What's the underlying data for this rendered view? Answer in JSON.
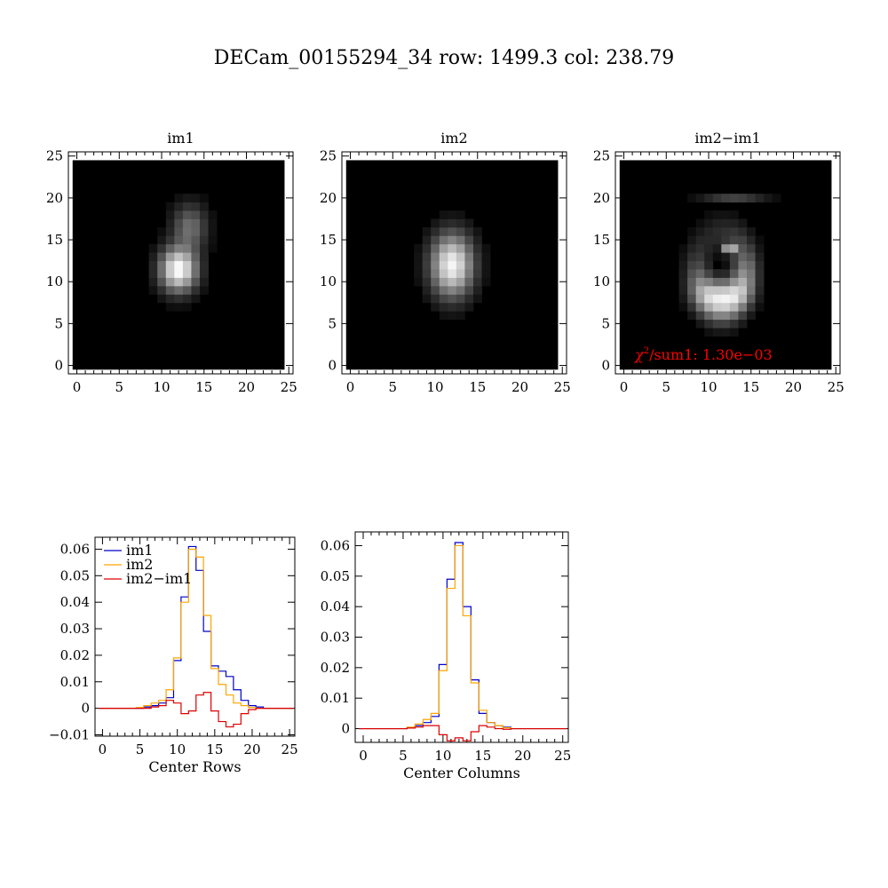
{
  "figure": {
    "title": "DECam_00155294_34 row: 1499.3 col: 238.79"
  },
  "chart_data": [
    {
      "type": "heatmap",
      "title": "im1",
      "xlim": [
        -1,
        25.5
      ],
      "ylim": [
        -1,
        25.5
      ],
      "xticks": [
        0,
        5,
        10,
        15,
        20,
        25
      ],
      "yticks": [
        0,
        5,
        10,
        15,
        20,
        25
      ],
      "tick_labels": [
        "0",
        "5",
        "10",
        "15",
        "20",
        "25"
      ],
      "grid_size": 25,
      "blobs": [
        {
          "cx": 12,
          "cy": 11.5,
          "sx": 1.4,
          "sy": 1.7,
          "amp": 1.0
        },
        {
          "cx": 13.3,
          "cy": 16.5,
          "sx": 1.3,
          "sy": 1.8,
          "amp": 0.35
        }
      ]
    },
    {
      "type": "heatmap",
      "title": "im2",
      "xlim": [
        -1,
        25.5
      ],
      "ylim": [
        -1,
        25.5
      ],
      "xticks": [
        0,
        5,
        10,
        15,
        20,
        25
      ],
      "yticks": [
        0,
        5,
        10,
        15,
        20,
        25
      ],
      "tick_labels": [
        "0",
        "5",
        "10",
        "15",
        "20",
        "25"
      ],
      "grid_size": 25,
      "blobs": [
        {
          "cx": 12,
          "cy": 12,
          "sx": 1.6,
          "sy": 2.4,
          "amp": 0.95
        }
      ]
    },
    {
      "type": "heatmap",
      "title": "im2−im1",
      "xlim": [
        -1,
        25.5
      ],
      "ylim": [
        -1,
        25.5
      ],
      "xticks": [
        0,
        5,
        10,
        15,
        20,
        25
      ],
      "yticks": [
        0,
        5,
        10,
        15,
        20,
        25
      ],
      "tick_labels": [
        "0",
        "5",
        "10",
        "15",
        "20",
        "25"
      ],
      "grid_size": 25,
      "annotation_prefix": "χ",
      "annotation_sup": "2",
      "annotation_suffix": "/sum1: 1.30e−03",
      "annotation_color": "#ff0000",
      "ring": {
        "cx": 11.5,
        "cy": 11.5,
        "rx": 2.8,
        "ry": 4.2,
        "width": 1.3
      },
      "blobs": [
        {
          "cx": 11.5,
          "cy": 8.5,
          "sx": 1.8,
          "sy": 1.2,
          "amp": 0.45
        },
        {
          "cx": 12.5,
          "cy": 14.0,
          "sx": 0.4,
          "sy": 0.4,
          "amp": 0.9
        },
        {
          "cx": 13.0,
          "cy": 20.0,
          "sx": 2.5,
          "sy": 0.4,
          "amp": 0.18
        }
      ]
    },
    {
      "type": "line",
      "step": true,
      "xlabel": "Center Rows",
      "ylabel": "",
      "xlim": [
        -1,
        25.7
      ],
      "ylim": [
        -0.0105,
        0.0645
      ],
      "xticks": [
        0,
        5,
        10,
        15,
        20,
        25
      ],
      "xtick_labels": [
        "0",
        "5",
        "10",
        "15",
        "20",
        "25"
      ],
      "yticks": [
        -0.01,
        0,
        0.01,
        0.02,
        0.03,
        0.04,
        0.05,
        0.06
      ],
      "ytick_labels": [
        "−0.01",
        "0",
        "0.01",
        "0.02",
        "0.03",
        "0.04",
        "0.05",
        "0.06"
      ],
      "legend": "top-left",
      "x": [
        0,
        1,
        2,
        3,
        4,
        5,
        6,
        7,
        8,
        9,
        10,
        11,
        12,
        13,
        14,
        15,
        16,
        17,
        18,
        19,
        20,
        21,
        22,
        23,
        24,
        25
      ],
      "series": [
        {
          "name": "im1",
          "color": "#0000cc",
          "values": [
            0,
            0,
            0,
            0,
            0,
            0,
            0.0005,
            0.001,
            0.002,
            0.004,
            0.018,
            0.042,
            0.061,
            0.052,
            0.029,
            0.016,
            0.014,
            0.012,
            0.007,
            0.003,
            0.001,
            0.0005,
            0,
            0,
            0,
            0
          ]
        },
        {
          "name": "im2",
          "color": "#ffa500",
          "values": [
            0,
            0,
            0,
            0,
            0,
            0.0003,
            0.001,
            0.002,
            0.003,
            0.007,
            0.019,
            0.04,
            0.06,
            0.057,
            0.035,
            0.015,
            0.009,
            0.005,
            0.002,
            0.001,
            0.0003,
            0,
            0,
            0,
            0,
            0
          ]
        },
        {
          "name": "im2−im1",
          "color": "#dd0000",
          "values": [
            0,
            0,
            0,
            0,
            0,
            0,
            0,
            0.0005,
            0.001,
            0.003,
            0.002,
            -0.002,
            -0.001,
            0.005,
            0.006,
            -0.001,
            -0.005,
            -0.007,
            -0.006,
            -0.002,
            -0.0005,
            0,
            0,
            0,
            0,
            0
          ]
        }
      ]
    },
    {
      "type": "line",
      "step": true,
      "xlabel": "Center Columns",
      "ylabel": "",
      "xlim": [
        -1,
        25.7
      ],
      "ylim": [
        -0.0045,
        0.0645
      ],
      "xticks": [
        0,
        5,
        10,
        15,
        20,
        25
      ],
      "xtick_labels": [
        "0",
        "5",
        "10",
        "15",
        "20",
        "25"
      ],
      "yticks": [
        0,
        0.01,
        0.02,
        0.03,
        0.04,
        0.05,
        0.06
      ],
      "ytick_labels": [
        "0",
        "0.01",
        "0.02",
        "0.03",
        "0.04",
        "0.05",
        "0.06"
      ],
      "x": [
        0,
        1,
        2,
        3,
        4,
        5,
        6,
        7,
        8,
        9,
        10,
        11,
        12,
        13,
        14,
        15,
        16,
        17,
        18,
        19,
        20,
        21,
        22,
        23,
        24,
        25
      ],
      "series": [
        {
          "name": "im1",
          "color": "#0000cc",
          "values": [
            0,
            0,
            0,
            0,
            0,
            0,
            0.0003,
            0.001,
            0.002,
            0.004,
            0.021,
            0.049,
            0.061,
            0.04,
            0.016,
            0.005,
            0.002,
            0.001,
            0.0005,
            0,
            0,
            0,
            0,
            0,
            0,
            0
          ]
        },
        {
          "name": "im2",
          "color": "#ffa500",
          "values": [
            0,
            0,
            0,
            0,
            0,
            0,
            0.0005,
            0.0015,
            0.003,
            0.005,
            0.019,
            0.046,
            0.06,
            0.037,
            0.015,
            0.006,
            0.002,
            0.001,
            0.0003,
            0,
            0,
            0,
            0,
            0,
            0,
            0
          ]
        },
        {
          "name": "im2−im1",
          "color": "#dd0000",
          "values": [
            0,
            0,
            0,
            0,
            0,
            0,
            0.0002,
            0.0005,
            0.001,
            0.001,
            -0.002,
            -0.004,
            -0.003,
            -0.004,
            -0.001,
            0.001,
            0.0005,
            0,
            -0.0002,
            0,
            0,
            0,
            0,
            0,
            0,
            0
          ]
        }
      ]
    }
  ]
}
